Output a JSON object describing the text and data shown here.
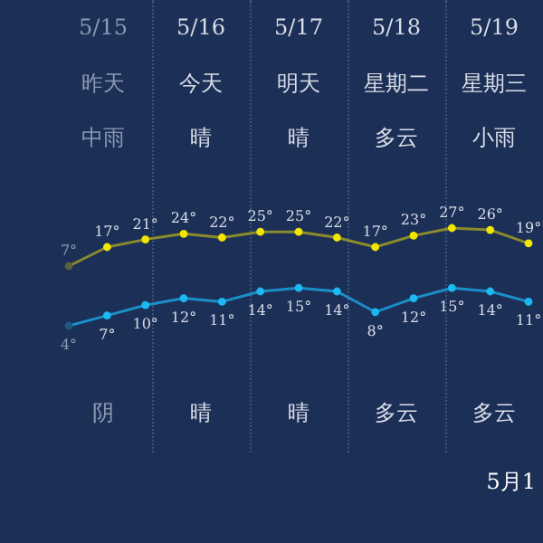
{
  "chart_data": [
    {
      "type": "line",
      "categories": [
        null,
        null,
        null,
        null,
        null,
        null,
        null,
        null,
        null,
        null,
        null,
        null,
        null
      ],
      "marker": "circle",
      "series": [
        {
          "color": "#8c8a2c",
          "colors": [
            "#5c6140",
            "#f2e600",
            "#f2e600",
            "#f2e600",
            "#f2e600",
            "#f2e600",
            "#f2e600",
            "#f2e600",
            "#f2e600",
            "#f2e600",
            "#f2e600",
            "#f2e600",
            "#f2e600"
          ],
          "values": [
            7,
            17,
            21,
            24,
            22,
            25,
            25,
            22,
            17,
            23,
            27,
            26,
            19
          ],
          "value_labels": [
            "7°",
            "17°",
            "21°",
            "24°",
            "22°",
            "25°",
            "25°",
            "22°",
            "17°",
            "23°",
            "27°",
            "26°",
            "19°"
          ]
        }
      ],
      "annotations": [
        "5/15",
        "5/16",
        "5/17",
        "5/18",
        "5/19",
        "昨天",
        "今天",
        "明天",
        "星期二",
        "星期三",
        "中雨",
        "晴",
        "晴",
        "多云",
        "小雨",
        "阴",
        "晴",
        "晴",
        "多云",
        "多云",
        "5月1"
      ]
    },
    {
      "type": "line",
      "categories": [
        null,
        null,
        null,
        null,
        null,
        null,
        null,
        null,
        null,
        null,
        null,
        null,
        null
      ],
      "marker": "circle",
      "series": [
        {
          "color": "#1a8fc8",
          "colors": [
            "#1f5a80",
            "#1cb8f2",
            "#1cb8f2",
            "#1cb8f2",
            "#1cb8f2",
            "#1cb8f2",
            "#1cb8f2",
            "#1cb8f2",
            "#1cb8f2",
            "#1cb8f2",
            "#1cb8f2",
            "#1cb8f2",
            "#1cb8f2"
          ],
          "values": [
            4,
            7,
            10,
            12,
            11,
            14,
            15,
            14,
            8,
            12,
            15,
            14,
            11
          ],
          "value_labels": [
            "4°",
            "7°",
            "10°",
            "12°",
            "11°",
            "14°",
            "15°",
            "14°",
            "8°",
            "12°",
            "15°",
            "14°",
            "11°"
          ]
        }
      ]
    }
  ]
}
